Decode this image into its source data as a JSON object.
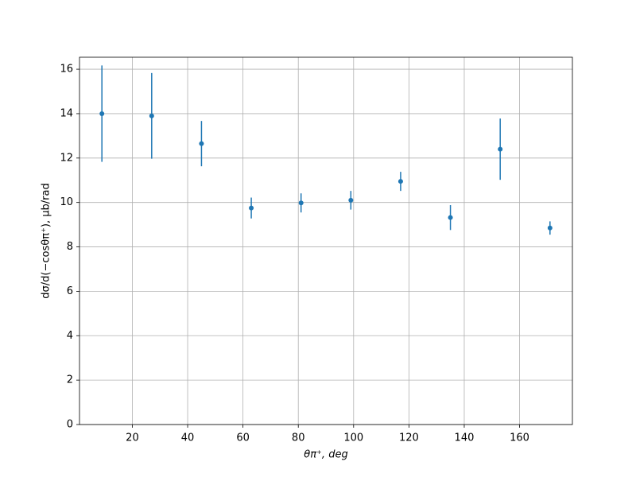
{
  "chart_data": {
    "type": "errorbar",
    "x_label": "θπ⁺, deg",
    "y_label": "dσ/d(−cosθπ⁺), μb/rad",
    "x": [
      9,
      27,
      45,
      63,
      81,
      99,
      117,
      135,
      153,
      171
    ],
    "values": [
      14.0,
      13.9,
      12.65,
      9.75,
      9.98,
      10.1,
      10.95,
      9.32,
      12.4,
      8.85
    ],
    "errors": [
      2.17,
      1.93,
      1.02,
      0.47,
      0.43,
      0.42,
      0.43,
      0.56,
      1.38,
      0.3
    ],
    "color": "#1f77b4",
    "xlim": [
      0.9,
      179.1
    ],
    "xticks": [
      20,
      40,
      60,
      80,
      100,
      120,
      140,
      160
    ],
    "ylim": [
      0,
      16.54
    ],
    "yticks": [
      0,
      2,
      4,
      6,
      8,
      10,
      12,
      14,
      16
    ],
    "grid": true
  }
}
